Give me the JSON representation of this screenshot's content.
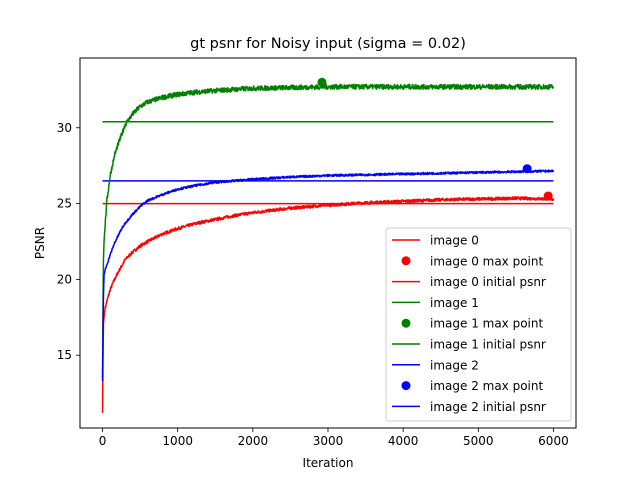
{
  "chart_data": {
    "type": "line",
    "title": "gt psnr for Noisy input (sigma = 0.02)",
    "xlabel": "Iteration",
    "ylabel": "PSNR",
    "xlim": [
      -300,
      6300
    ],
    "ylim": [
      10.2,
      34.6
    ],
    "xticks": [
      0,
      1000,
      2000,
      3000,
      4000,
      5000,
      6000
    ],
    "yticks": [
      15,
      20,
      25,
      30
    ],
    "grid": false,
    "legend_position": "lower-right",
    "series": [
      {
        "name": "image 0",
        "color": "#ff0000",
        "curve": {
          "x": [
            0,
            10,
            30,
            60,
            100,
            150,
            200,
            300,
            400,
            500,
            600,
            800,
            1000,
            1250,
            1500,
            1750,
            2000,
            2500,
            3000,
            3500,
            4000,
            4500,
            5000,
            5500,
            6000
          ],
          "y": [
            11.2,
            17.0,
            18.0,
            18.6,
            19.3,
            19.9,
            20.4,
            21.3,
            21.8,
            22.2,
            22.5,
            23.0,
            23.35,
            23.7,
            23.95,
            24.2,
            24.4,
            24.7,
            24.9,
            25.05,
            25.15,
            25.25,
            25.3,
            25.35,
            25.3
          ]
        },
        "noise": 0.1,
        "max_point": {
          "x": 5930,
          "y": 25.5
        },
        "initial_psnr": {
          "x": [
            0,
            6000
          ],
          "y": 25.0
        }
      },
      {
        "name": "image 1",
        "color": "#008000",
        "curve": {
          "x": [
            0,
            10,
            20,
            40,
            60,
            80,
            100,
            130,
            160,
            200,
            250,
            300,
            400,
            500,
            600,
            800,
            1000,
            1250,
            1500,
            2000,
            2500,
            3000,
            4000,
            5000,
            6000
          ],
          "y": [
            13.5,
            21.0,
            22.5,
            24.0,
            25.3,
            26.0,
            26.8,
            27.5,
            28.2,
            28.8,
            29.5,
            30.2,
            30.9,
            31.4,
            31.7,
            32.0,
            32.2,
            32.35,
            32.45,
            32.6,
            32.65,
            32.7,
            32.7,
            32.7,
            32.7
          ]
        },
        "noise": 0.16,
        "max_point": {
          "x": 2920,
          "y": 33.0
        },
        "initial_psnr": {
          "x": [
            0,
            6000
          ],
          "y": 30.4
        }
      },
      {
        "name": "image 2",
        "color": "#0000ff",
        "curve": {
          "x": [
            0,
            10,
            20,
            40,
            60,
            80,
            100,
            130,
            160,
            200,
            250,
            300,
            350,
            400,
            500,
            600,
            800,
            1000,
            1250,
            1500,
            2000,
            2500,
            3000,
            3500,
            4000,
            4500,
            5000,
            5500,
            6000
          ],
          "y": [
            13.3,
            18.5,
            20.3,
            20.7,
            21.0,
            21.3,
            21.6,
            22.0,
            22.4,
            22.8,
            23.3,
            23.7,
            24.0,
            24.3,
            24.8,
            25.2,
            25.6,
            25.95,
            26.2,
            26.4,
            26.6,
            26.75,
            26.85,
            26.9,
            26.95,
            27.0,
            27.05,
            27.1,
            27.15
          ]
        },
        "noise": 0.07,
        "max_point": {
          "x": 5650,
          "y": 27.3
        },
        "initial_psnr": {
          "x": [
            0,
            6000
          ],
          "y": 26.5
        }
      }
    ],
    "legend": [
      {
        "label": "image 0",
        "kind": "line",
        "color": "#ff0000"
      },
      {
        "label": "image 0 max point",
        "kind": "marker",
        "color": "#ff0000"
      },
      {
        "label": "image 0 initial psnr",
        "kind": "line",
        "color": "#ff0000"
      },
      {
        "label": "image 1",
        "kind": "line",
        "color": "#008000"
      },
      {
        "label": "image 1 max point",
        "kind": "marker",
        "color": "#008000"
      },
      {
        "label": "image 1 initial psnr",
        "kind": "line",
        "color": "#008000"
      },
      {
        "label": "image 2",
        "kind": "line",
        "color": "#0000ff"
      },
      {
        "label": "image 2 max point",
        "kind": "marker",
        "color": "#0000ff"
      },
      {
        "label": "image 2 initial psnr",
        "kind": "line",
        "color": "#0000ff"
      }
    ]
  }
}
